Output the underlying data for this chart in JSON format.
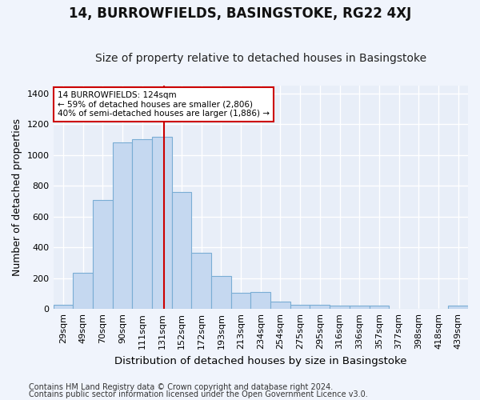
{
  "title": "14, BURROWFIELDS, BASINGSTOKE, RG22 4XJ",
  "subtitle": "Size of property relative to detached houses in Basingstoke",
  "xlabel": "Distribution of detached houses by size in Basingstoke",
  "ylabel": "Number of detached properties",
  "footnote1": "Contains HM Land Registry data © Crown copyright and database right 2024.",
  "footnote2": "Contains public sector information licensed under the Open Government Licence v3.0.",
  "categories": [
    "29sqm",
    "49sqm",
    "70sqm",
    "90sqm",
    "111sqm",
    "131sqm",
    "152sqm",
    "172sqm",
    "193sqm",
    "213sqm",
    "234sqm",
    "254sqm",
    "275sqm",
    "295sqm",
    "316sqm",
    "336sqm",
    "357sqm",
    "377sqm",
    "398sqm",
    "418sqm",
    "439sqm"
  ],
  "values": [
    25,
    235,
    710,
    1080,
    1100,
    1120,
    760,
    365,
    215,
    105,
    110,
    50,
    30,
    30,
    20,
    20,
    20,
    0,
    0,
    0,
    20
  ],
  "bar_color": "#c5d8f0",
  "bar_edge_color": "#7aadd4",
  "background_color": "#e8eef8",
  "grid_color": "#ffffff",
  "annotation_text": "14 BURROWFIELDS: 124sqm\n← 59% of detached houses are smaller (2,806)\n40% of semi-detached houses are larger (1,886) →",
  "annotation_box_color": "#ffffff",
  "annotation_box_edge_color": "#cc0000",
  "vline_x": 5.1,
  "vline_color": "#cc0000",
  "ylim": [
    0,
    1450
  ],
  "yticks": [
    0,
    200,
    400,
    600,
    800,
    1000,
    1200,
    1400
  ],
  "title_fontsize": 12,
  "subtitle_fontsize": 10,
  "xlabel_fontsize": 9.5,
  "ylabel_fontsize": 9,
  "tick_fontsize": 8,
  "footnote_fontsize": 7
}
